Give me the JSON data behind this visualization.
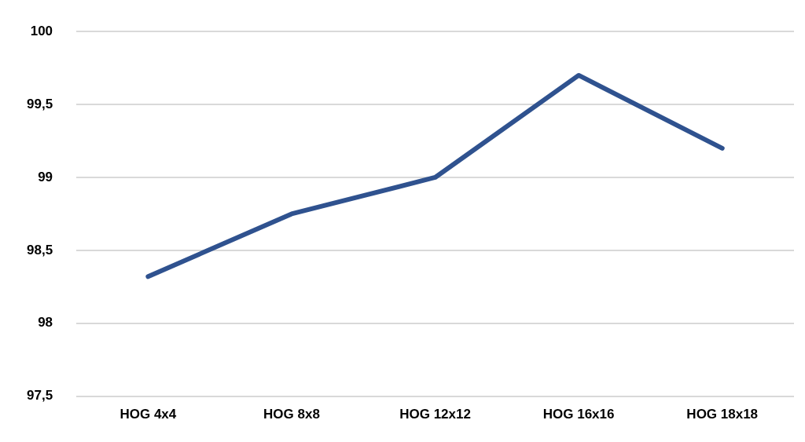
{
  "chart_data": {
    "type": "line",
    "categories": [
      "HOG 4x4",
      "HOG 8x8",
      "HOG 12x12",
      "HOG 16x16",
      "HOG 18x18"
    ],
    "series": [
      {
        "color": "#2f528f",
        "values": [
          98.32,
          98.75,
          99.0,
          99.7,
          99.2
        ]
      }
    ],
    "ylim": [
      97.5,
      100
    ],
    "yticks": [
      {
        "value": 97.5,
        "label": "97,5"
      },
      98,
      {
        "value": 98.5,
        "label": "98,5"
      },
      99,
      {
        "value": 99.5,
        "label": "99,5"
      },
      100
    ],
    "grid": "y",
    "marker": "none",
    "line_style": "solid",
    "legend": false
  }
}
